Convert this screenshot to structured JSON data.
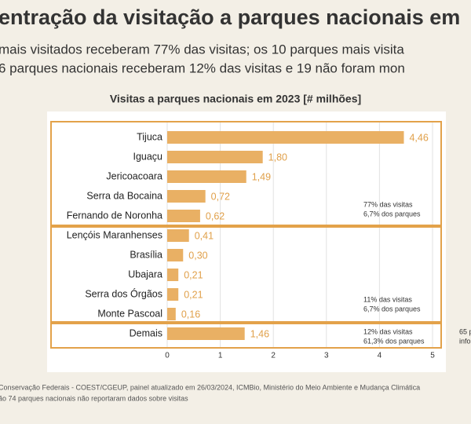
{
  "header": {
    "title": "entração da visitação a parques nacionais em",
    "subtitle": [
      "mais visitados receberam 77% das visitas; os 10 parques mais visita",
      "6 parques nacionais receberam 12% das visitas e 19 não foram mon"
    ]
  },
  "chart_data": {
    "type": "bar",
    "orientation": "horizontal",
    "title": "Visitas a parques nacionais em 2023 [# milhões]",
    "categories": [
      "Tijuca",
      "Iguaçu",
      "Jericoacoara",
      "Serra da Bocaina",
      "Fernando de Noronha",
      "Lençóis Maranhenses",
      "Brasília",
      "Ubajara",
      "Serra dos Órgãos",
      "Monte Pascoal",
      "Demais"
    ],
    "values": [
      4.46,
      1.8,
      1.49,
      0.72,
      0.62,
      0.41,
      0.3,
      0.21,
      0.21,
      0.16,
      1.46
    ],
    "value_labels": [
      "4,46",
      "1,80",
      "1,49",
      "0,72",
      "0,62",
      "0,41",
      "0,30",
      "0,21",
      "0,21",
      "0,16",
      "1,46"
    ],
    "color": "#e9b064",
    "label_color": "#e0a04a",
    "xlim": [
      0,
      5
    ],
    "xticks": [
      0,
      1,
      2,
      3,
      4,
      5
    ],
    "grid": true,
    "annotations": [
      [
        "77% das visitas",
        "6,7% dos parques"
      ],
      [
        "11% das visitas",
        "6,7% dos parques"
      ],
      [
        "12% das visitas",
        "61,3% dos parques"
      ],
      [
        "65 p",
        "info"
      ]
    ]
  },
  "footer": [
    "Conservação Federais - COEST/CGEUP, painel atualizado em 26/03/2024, ICMBio, Ministério do Meio Ambiente e Mudança Climática",
    "ão 74 parques nacionais não reportaram dados sobre visitas"
  ]
}
